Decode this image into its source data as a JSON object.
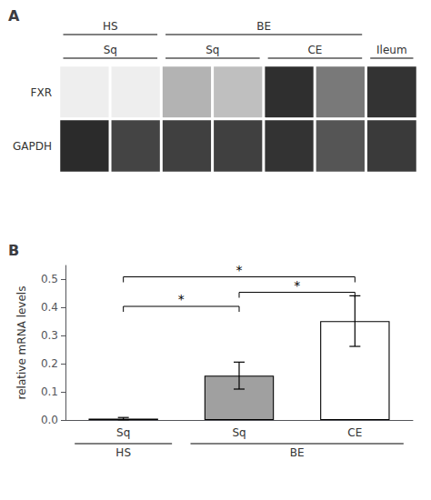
{
  "chart_data": [
    {
      "type": "heatmap",
      "title": "A",
      "rows": [
        "FXR",
        "GAPDH"
      ],
      "categories": [
        null,
        null,
        null,
        null,
        null,
        null,
        null
      ],
      "x_groups": [
        [
          "HS",
          "HS",
          "BE",
          "BE",
          "BE",
          "BE",
          null
        ],
        [
          "Sq",
          "Sq",
          "Sq",
          "Sq",
          "CE",
          "CE",
          "Ileum"
        ]
      ],
      "cells": [
        [
          0.0,
          0.0,
          0.28,
          0.22,
          0.9,
          0.55,
          0.88
        ],
        [
          0.92,
          0.8,
          0.82,
          0.82,
          0.88,
          0.72,
          0.85
        ]
      ],
      "color_range": [
        0,
        1
      ]
    },
    {
      "type": "bar",
      "title": "B",
      "ylabel": "relative mRNA levels",
      "categories": [
        "Sq",
        "Sq",
        "CE"
      ],
      "x_groups": [
        [
          "HS",
          "BE",
          "BE"
        ]
      ],
      "values": [
        0.005,
        0.158,
        0.352
      ],
      "errors": [
        0.004,
        0.048,
        0.09
      ],
      "colors": [
        "#ffffff",
        "#a0a0a0",
        "#ffffff"
      ],
      "ylim": [
        0,
        0.55
      ],
      "yticks": [
        {
          "value": 0.0,
          "label": "0.0"
        },
        0.1,
        0.2,
        0.3,
        0.4,
        0.5
      ],
      "grid": false,
      "sig_brackets": [
        {
          "from": 0,
          "to": 1,
          "y": 0.385,
          "label": "*"
        },
        {
          "from": 1,
          "to": 2,
          "y": 0.435,
          "label": "*"
        },
        {
          "from": 0,
          "to": 2,
          "y": 0.49,
          "label": "*"
        }
      ]
    }
  ]
}
